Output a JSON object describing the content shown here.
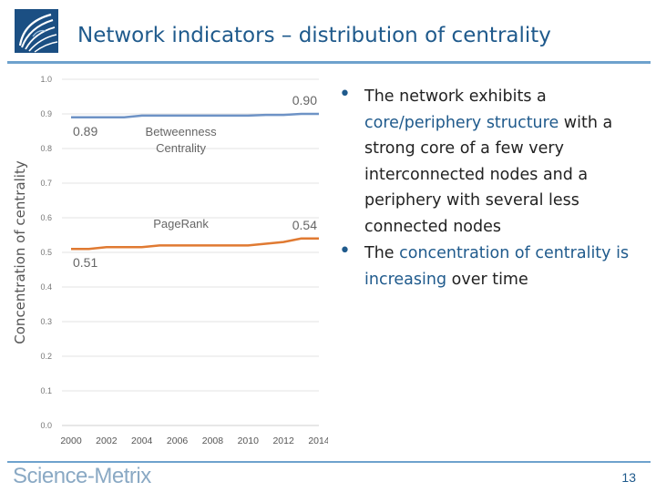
{
  "slide": {
    "title": "Network indicators – distribution of centrality",
    "page_number": "13",
    "footer_brand_prefix": "Science-",
    "footer_brand_suffix": "Metrix"
  },
  "bullets": [
    {
      "parts": [
        {
          "text": "The network exhibits a ",
          "highlight": false
        },
        {
          "text": "core/periphery structure",
          "highlight": true
        },
        {
          "text": " with a strong core of a few very interconnected nodes and a periphery with several less connected nodes",
          "highlight": false
        }
      ]
    },
    {
      "parts": [
        {
          "text": "The ",
          "highlight": false
        },
        {
          "text": "concentration of centrality is increasing",
          "highlight": true
        },
        {
          "text": " over time",
          "highlight": false
        }
      ]
    }
  ],
  "colors": {
    "title": "#1f5a8c",
    "accent_rule": "#6ea2cd",
    "betweenness_line": "#6e93c6",
    "pagerank_line": "#e07a32",
    "chart_text": "#777777"
  },
  "chart_data": {
    "type": "line",
    "ylabel": "Concentration of centrality",
    "xlabel": "",
    "ylim": [
      0.0,
      1.0
    ],
    "y_ticks": [
      "0.0",
      "0.1",
      "0.2",
      "0.3",
      "0.4",
      "0.5",
      "0.6",
      "0.7",
      "0.8",
      "0.9",
      "1.0"
    ],
    "x_range": [
      2000,
      2014
    ],
    "x_ticks": [
      "2000",
      "2002",
      "2004",
      "2006",
      "2008",
      "2010",
      "2012",
      "2014"
    ],
    "grid": true,
    "series": [
      {
        "name": "Betweenness Centrality",
        "x": [
          2000,
          2001,
          2002,
          2003,
          2004,
          2005,
          2006,
          2007,
          2008,
          2009,
          2010,
          2011,
          2012,
          2013,
          2014
        ],
        "values": [
          0.89,
          0.89,
          0.89,
          0.89,
          0.895,
          0.895,
          0.895,
          0.895,
          0.895,
          0.895,
          0.895,
          0.897,
          0.897,
          0.9,
          0.9
        ],
        "label_lines": [
          "Betweenness",
          "Centrality"
        ],
        "start_label": "0.89",
        "end_label": "0.90"
      },
      {
        "name": "PageRank",
        "x": [
          2000,
          2001,
          2002,
          2003,
          2004,
          2005,
          2006,
          2007,
          2008,
          2009,
          2010,
          2011,
          2012,
          2013,
          2014
        ],
        "values": [
          0.51,
          0.51,
          0.515,
          0.515,
          0.515,
          0.52,
          0.52,
          0.52,
          0.52,
          0.52,
          0.52,
          0.525,
          0.53,
          0.54,
          0.54
        ],
        "label_lines": [
          "PageRank"
        ],
        "start_label": "0.51",
        "end_label": "0.54"
      }
    ]
  }
}
